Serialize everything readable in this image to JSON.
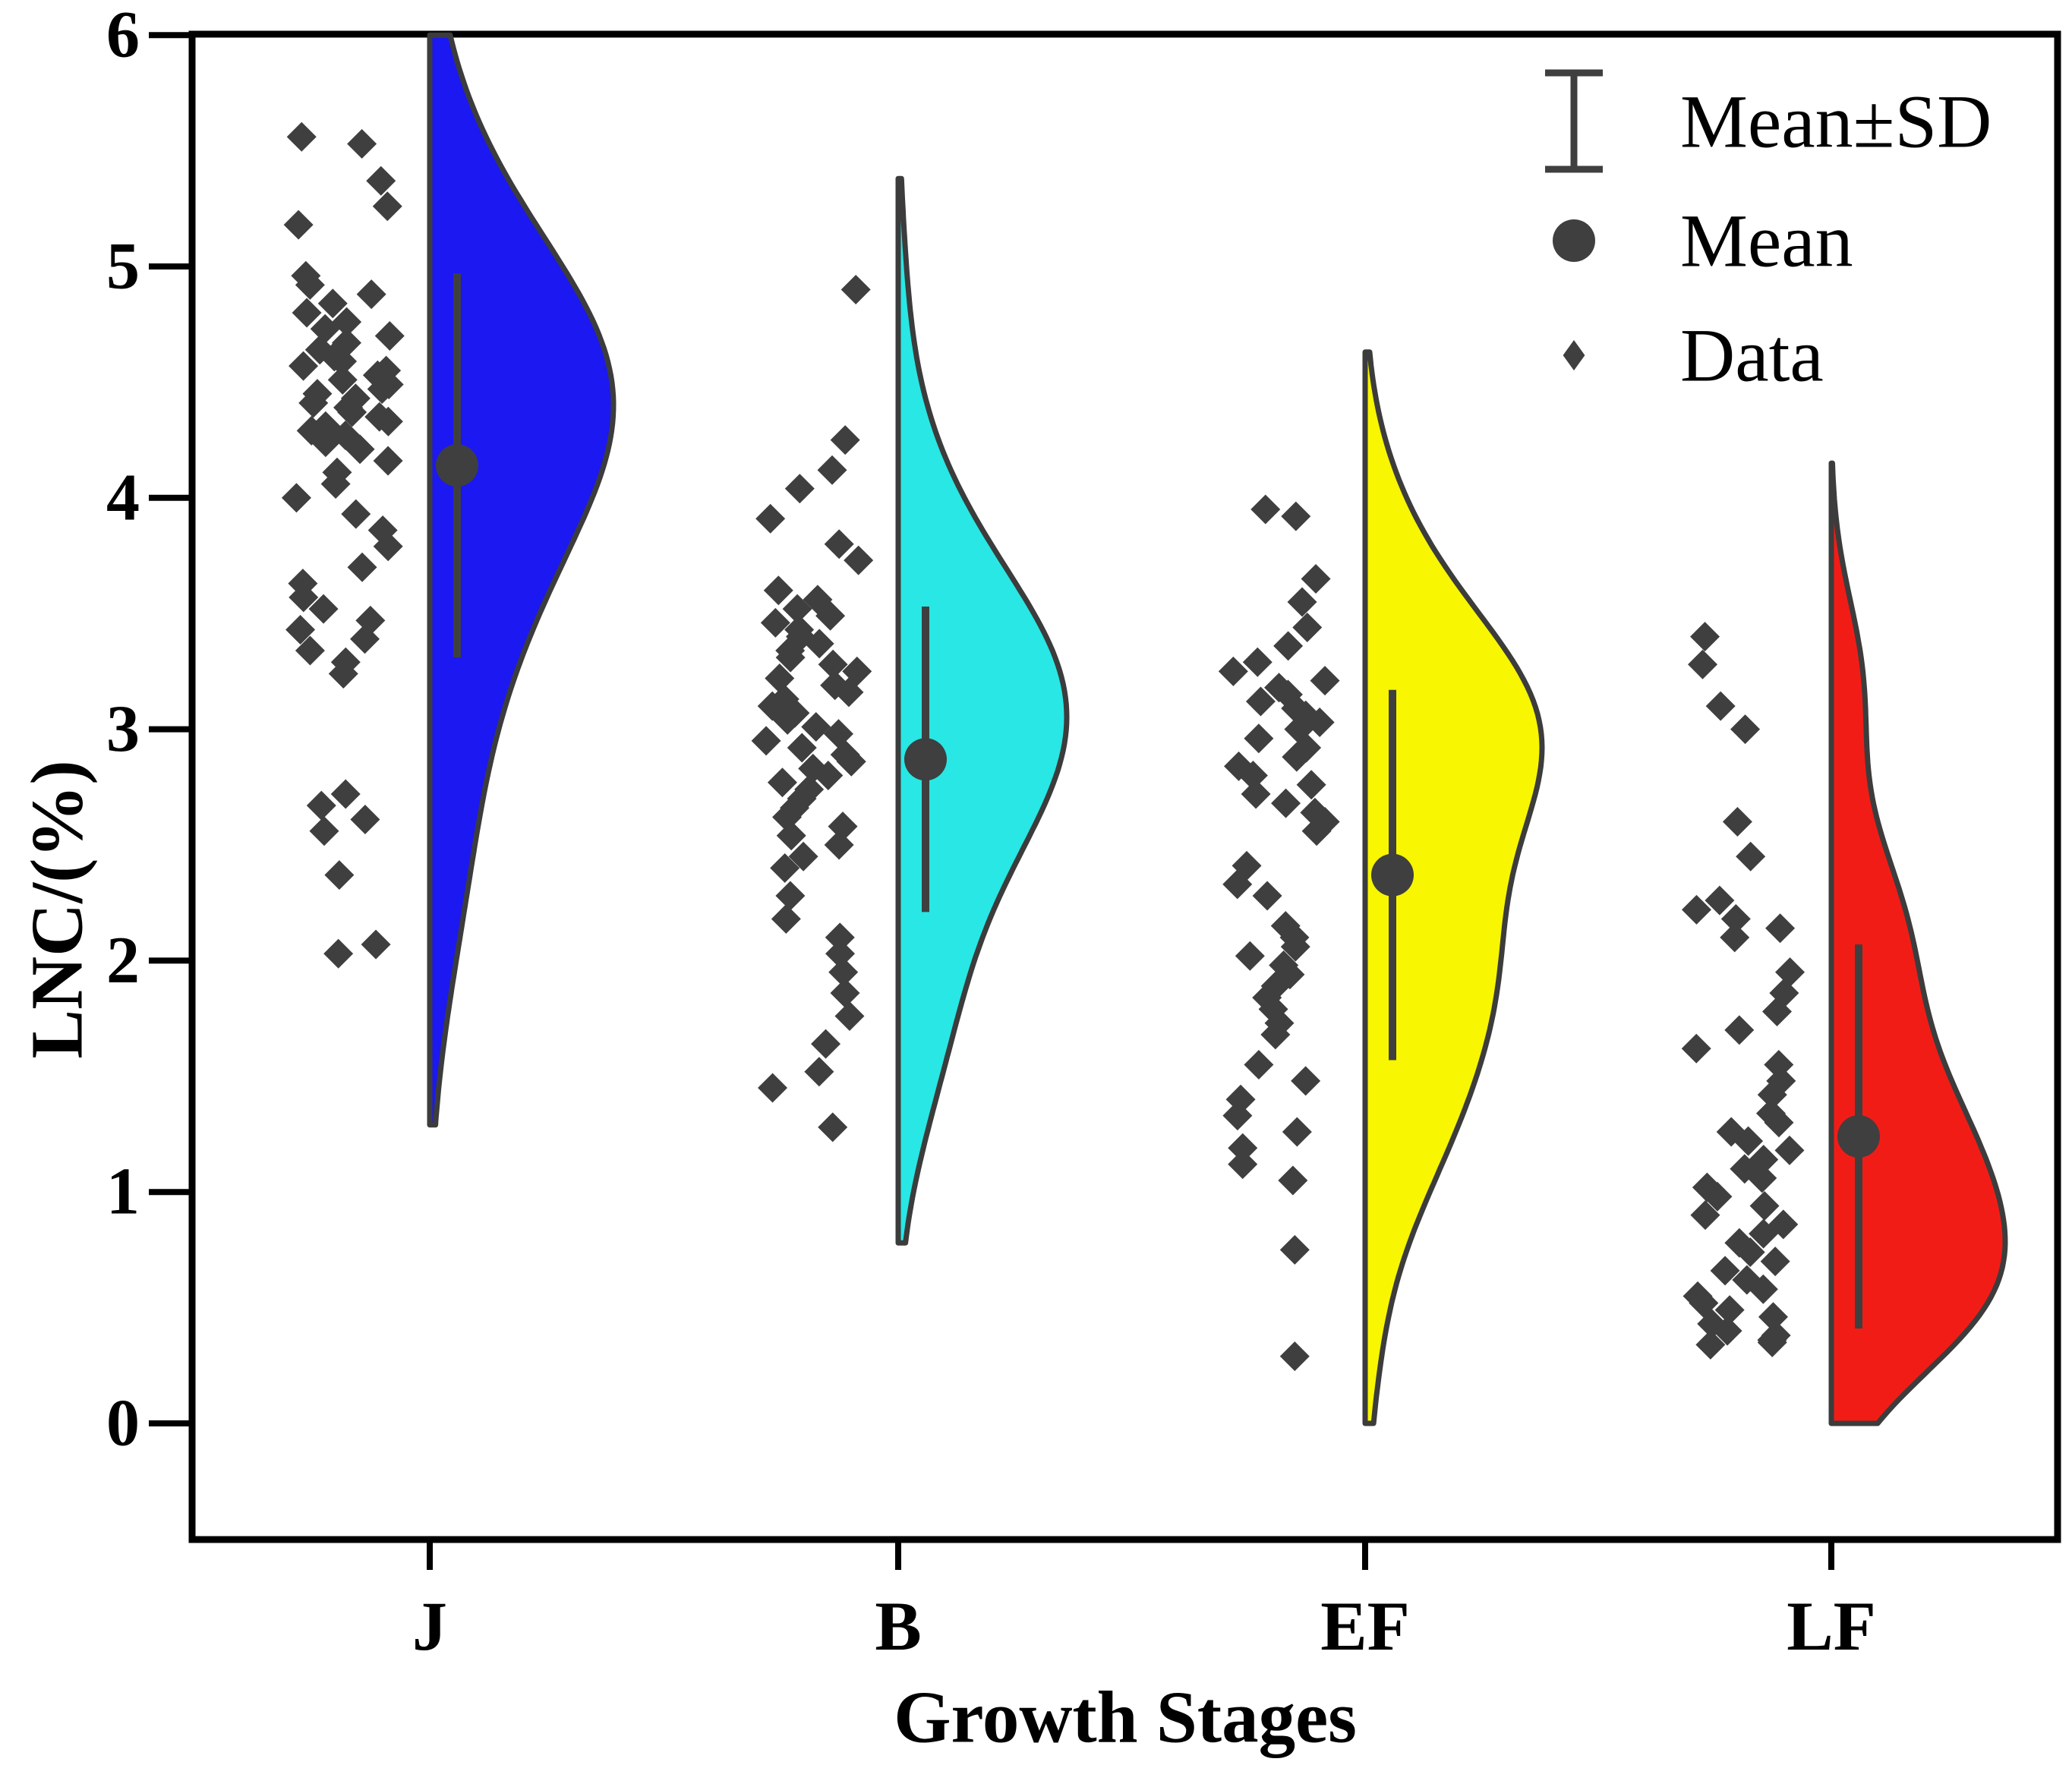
{
  "figure": {
    "background": "#ffffff",
    "frame_color": "#000000",
    "marker_color": "#3f3f3f",
    "violin_outline_color": "#3c3c3c",
    "legend": {
      "position": "top-right",
      "entries": [
        {
          "label": "Mean±SD",
          "marker": "errorbar-icon"
        },
        {
          "label": "Mean",
          "marker": "circle-icon"
        },
        {
          "label": "Data",
          "marker": "diamond-icon"
        }
      ]
    }
  },
  "chart_data": {
    "type": "raincloud (half-violin + jittered scatter + mean±SD error bar)",
    "title": "",
    "xlabel": "Growth Stages",
    "ylabel": "LNC/(%)",
    "ylim": [
      -0.5,
      6
    ],
    "yticks": [
      0,
      1,
      2,
      3,
      4,
      5,
      6
    ],
    "grid": false,
    "legend_position": "top-right",
    "categories": [
      "J",
      "B",
      "EF",
      "LF"
    ],
    "series": [
      {
        "name": "J",
        "color": "#1b18f2",
        "mean": 4.14,
        "sd": 0.83,
        "violin_support": [
          1.29,
          6.0
        ],
        "bandwidth": 0.55,
        "points": [
          5.56,
          5.53,
          5.37,
          5.26,
          5.18,
          4.96,
          4.92,
          4.88,
          4.84,
          4.8,
          4.76,
          4.73,
          4.7,
          4.67,
          4.64,
          4.61,
          4.59,
          4.57,
          4.55,
          4.53,
          4.51,
          4.49,
          4.47,
          4.45,
          4.43,
          4.41,
          4.39,
          4.37,
          4.35,
          4.33,
          4.31,
          4.29,
          4.27,
          4.24,
          4.21,
          4.16,
          4.11,
          4.06,
          4.0,
          3.93,
          3.86,
          3.79,
          3.7,
          3.63,
          3.57,
          3.52,
          3.47,
          3.43,
          3.39,
          3.34,
          3.29,
          3.24,
          2.72,
          2.67,
          2.61,
          2.56,
          2.37,
          2.07,
          2.03
        ]
      },
      {
        "name": "B",
        "color": "#28e7e4",
        "mean": 2.87,
        "sd": 0.66,
        "violin_support": [
          0.78,
          5.38
        ],
        "bandwidth": 0.42,
        "points": [
          4.9,
          4.25,
          4.12,
          4.04,
          3.91,
          3.8,
          3.73,
          3.6,
          3.56,
          3.52,
          3.49,
          3.46,
          3.43,
          3.4,
          3.37,
          3.34,
          3.31,
          3.28,
          3.25,
          3.22,
          3.19,
          3.16,
          3.13,
          3.1,
          3.07,
          3.04,
          3.01,
          2.98,
          2.95,
          2.92,
          2.89,
          2.86,
          2.83,
          2.8,
          2.77,
          2.74,
          2.7,
          2.66,
          2.62,
          2.58,
          2.54,
          2.5,
          2.45,
          2.4,
          2.28,
          2.18,
          2.1,
          2.03,
          1.95,
          1.86,
          1.76,
          1.64,
          1.52,
          1.45,
          1.28
        ]
      },
      {
        "name": "EF",
        "color": "#f8f600",
        "mean": 2.37,
        "sd": 0.8,
        "violin_support": [
          0.0,
          4.63
        ],
        "bandwidth": 0.4,
        "points": [
          3.95,
          3.92,
          3.65,
          3.55,
          3.44,
          3.36,
          3.29,
          3.25,
          3.21,
          3.18,
          3.15,
          3.12,
          3.09,
          3.06,
          3.03,
          3.0,
          2.96,
          2.92,
          2.88,
          2.84,
          2.8,
          2.76,
          2.72,
          2.68,
          2.64,
          2.6,
          2.56,
          2.41,
          2.33,
          2.28,
          2.15,
          2.1,
          2.06,
          2.02,
          1.98,
          1.94,
          1.89,
          1.84,
          1.79,
          1.73,
          1.68,
          1.55,
          1.48,
          1.4,
          1.33,
          1.26,
          1.19,
          1.12,
          1.05,
          0.75,
          0.29
        ]
      },
      {
        "name": "LF",
        "color": "#f21c17",
        "mean": 1.24,
        "sd": 0.83,
        "violin_support": [
          0.0,
          4.15
        ],
        "bandwidth": 0.34,
        "points": [
          3.4,
          3.28,
          3.1,
          3.0,
          2.6,
          2.45,
          2.26,
          2.22,
          2.18,
          2.14,
          2.1,
          1.95,
          1.86,
          1.78,
          1.7,
          1.62,
          1.55,
          1.48,
          1.42,
          1.34,
          1.3,
          1.26,
          1.22,
          1.18,
          1.14,
          1.1,
          1.06,
          1.02,
          0.98,
          0.94,
          0.9,
          0.86,
          0.82,
          0.78,
          0.74,
          0.7,
          0.66,
          0.62,
          0.58,
          0.55,
          0.52,
          0.49,
          0.46,
          0.43,
          0.4,
          0.38,
          0.36,
          0.35,
          0.34
        ]
      }
    ]
  }
}
